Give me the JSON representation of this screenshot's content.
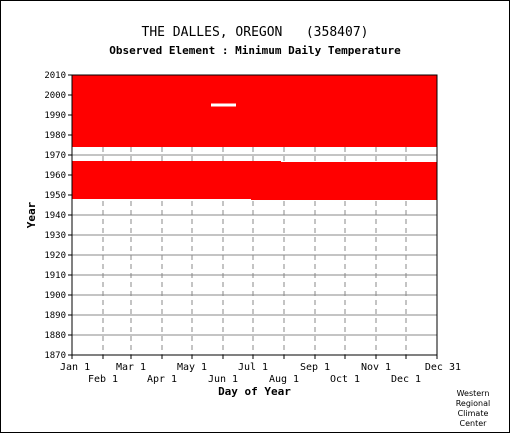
{
  "chart_data": {
    "type": "heatmap",
    "title": "THE DALLES, OREGON   (358407)",
    "subtitle": "Observed Element : Minimum Daily Temperature",
    "xlabel": "Day of Year",
    "ylabel": "Year",
    "x_range_day_of_year": [
      1,
      366
    ],
    "y_range_year": [
      1870,
      2010
    ],
    "y_ticks": [
      1870,
      1880,
      1890,
      1900,
      1910,
      1920,
      1930,
      1940,
      1950,
      1960,
      1970,
      1980,
      1990,
      2000,
      2010
    ],
    "x_ticks_top_row": [
      {
        "label": "Jan 1",
        "day": 1
      },
      {
        "label": "Mar 1",
        "day": 60
      },
      {
        "label": "May 1",
        "day": 121
      },
      {
        "label": "Jul 1",
        "day": 182
      },
      {
        "label": "Sep 1",
        "day": 244
      },
      {
        "label": "Nov 1",
        "day": 305
      },
      {
        "label": "Dec 31",
        "day": 366
      }
    ],
    "x_ticks_bottom_row": [
      {
        "label": "Feb 1",
        "day": 32
      },
      {
        "label": "Apr 1",
        "day": 91
      },
      {
        "label": "Jun 1",
        "day": 152
      },
      {
        "label": "Aug 1",
        "day": 213
      },
      {
        "label": "Oct 1",
        "day": 274
      },
      {
        "label": "Dec 1",
        "day": 335
      }
    ],
    "grid": true,
    "data_color": "#ff0000",
    "observed_blocks": [
      {
        "day_start": 1,
        "day_end": 366,
        "year_start": 1974,
        "year_end": 2010
      },
      {
        "day_start": 1,
        "day_end": 30,
        "year_start": 1975.5,
        "year_end": 2010
      },
      {
        "day_start": 1,
        "day_end": 366,
        "year_start": 1948,
        "year_end": 1966
      },
      {
        "day_start": 180,
        "day_end": 366,
        "year_start": 1947.5,
        "year_end": 1966
      },
      {
        "day_start": 1,
        "day_end": 210,
        "year_start": 1948,
        "year_end": 1967
      },
      {
        "day_start": 210,
        "day_end": 366,
        "year_start": 1948,
        "year_end": 1966.5
      }
    ],
    "missing_spans": [
      {
        "day_start": 140,
        "day_end": 165,
        "year": 1995
      }
    ]
  },
  "credit": [
    "Western",
    "Regional",
    "Climate",
    "Center"
  ]
}
